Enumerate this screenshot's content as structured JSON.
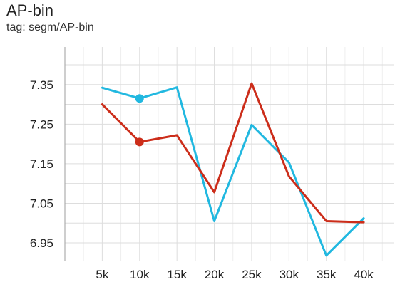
{
  "chart_data": {
    "type": "line",
    "title": "AP-bin",
    "subtitle": "tag: segm/AP-bin",
    "xlabel": "",
    "ylabel": "",
    "x": [
      5000,
      10000,
      15000,
      20000,
      25000,
      30000,
      35000,
      40000
    ],
    "x_tick_labels": [
      "5k",
      "10k",
      "15k",
      "20k",
      "25k",
      "30k",
      "35k",
      "40k"
    ],
    "y_ticks": [
      6.95,
      7.05,
      7.15,
      7.25,
      7.35
    ],
    "y_tick_labels": [
      "6.95",
      "7.05",
      "7.15",
      "7.25",
      "7.35"
    ],
    "xlim": [
      0,
      44000
    ],
    "ylim": [
      6.905,
      7.445
    ],
    "grid": true,
    "series": [
      {
        "color": "#21b8e0",
        "values": [
          7.342,
          7.315,
          7.343,
          7.005,
          7.248,
          7.153,
          6.918,
          7.012
        ],
        "highlight_index": 1
      },
      {
        "color": "#cc2d1a",
        "values": [
          7.3,
          7.205,
          7.222,
          7.078,
          7.353,
          7.118,
          7.005,
          7.002
        ],
        "highlight_index": 1
      }
    ]
  }
}
